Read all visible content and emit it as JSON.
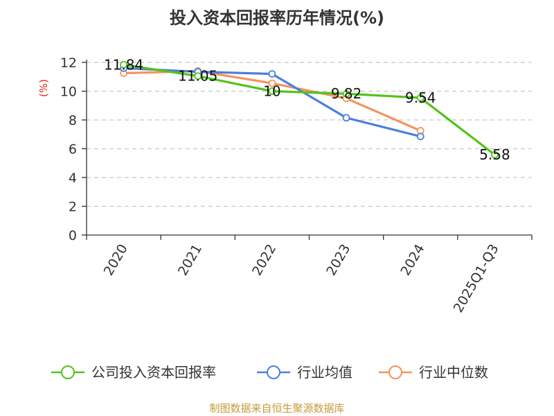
{
  "chart_data": {
    "type": "line",
    "title": "投入资本回报率历年情况(%)",
    "ylabel": "(%)",
    "xlabel": "",
    "categories": [
      "2020",
      "2021",
      "2022",
      "2023",
      "2024",
      "2025Q1-Q3"
    ],
    "ylim": [
      0,
      12
    ],
    "yticks": [
      0,
      2,
      4,
      6,
      8,
      10,
      12
    ],
    "grid": "horizontal-dashed",
    "legend_position": "bottom",
    "series": [
      {
        "name": "公司投入资本回报率",
        "color": "#52c41a",
        "values": [
          11.84,
          11.05,
          10,
          9.82,
          9.54,
          5.58
        ],
        "data_labels": [
          "11.84",
          "11.05",
          "10",
          "9.82",
          "9.54",
          "5.58"
        ]
      },
      {
        "name": "行业均值",
        "color": "#4a7fe0",
        "values": [
          11.6,
          11.35,
          11.2,
          8.15,
          6.85,
          null
        ]
      },
      {
        "name": "行业中位数",
        "color": "#f5935a",
        "values": [
          11.25,
          11.4,
          10.55,
          9.5,
          7.25,
          null
        ]
      }
    ]
  },
  "source": "制图数据来自恒生聚源数据库"
}
